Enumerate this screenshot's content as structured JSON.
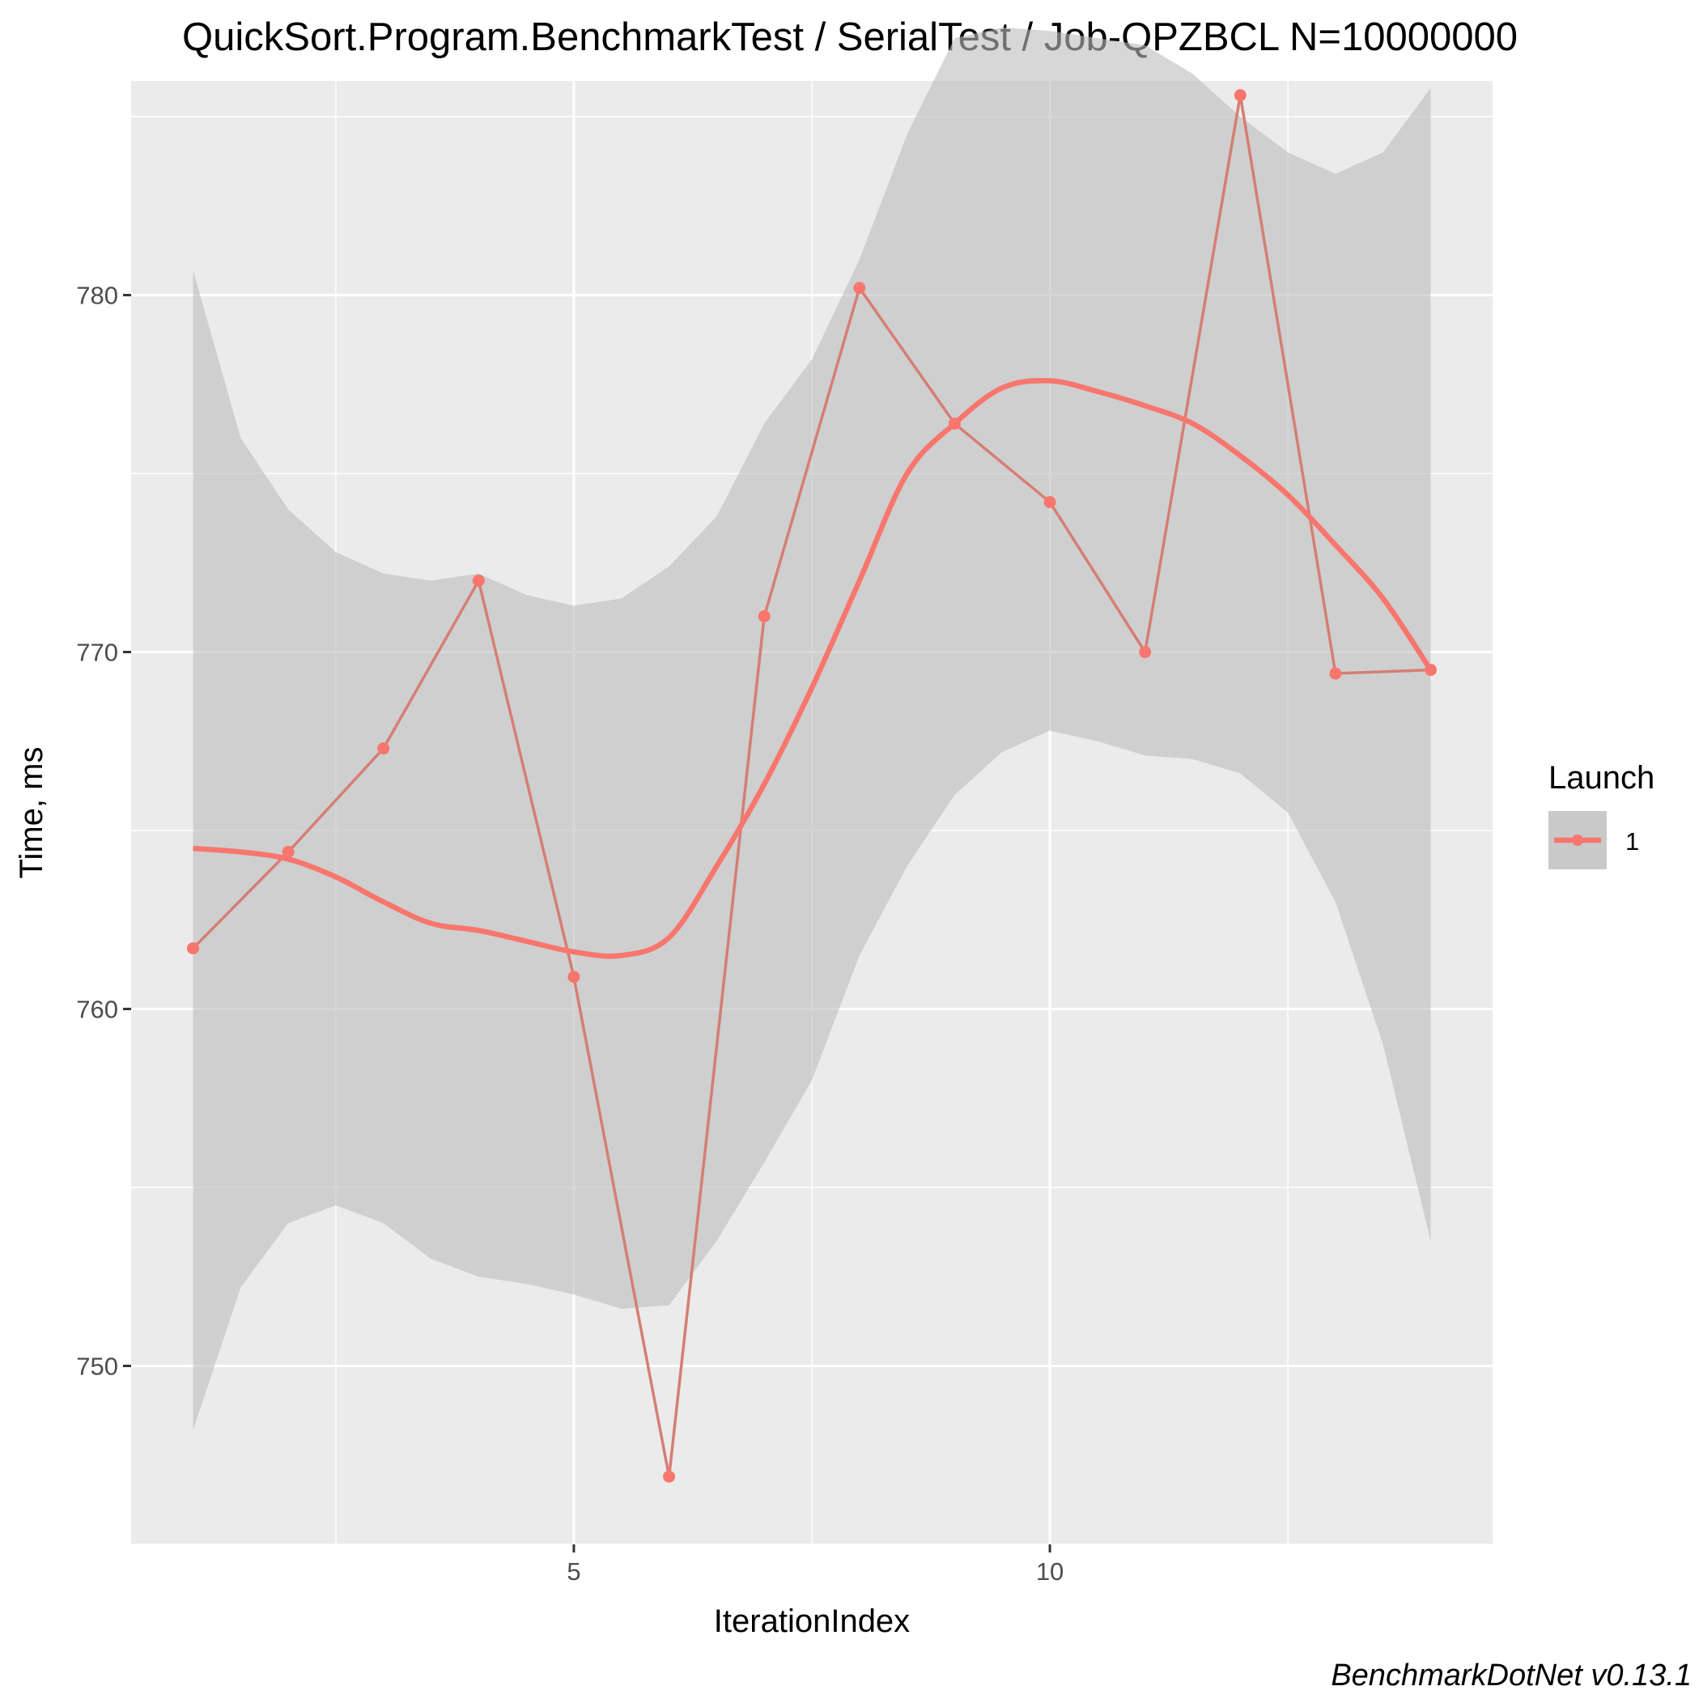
{
  "chart_data": {
    "type": "line",
    "title": "QuickSort.Program.BenchmarkTest / SerialTest / Job-QPZBCL N=10000000",
    "xlabel": "IterationIndex",
    "ylabel": "Time, ms",
    "caption": "BenchmarkDotNet v0.13.1",
    "xlim": [
      0.35,
      14.65
    ],
    "ylim": [
      745,
      786
    ],
    "x_ticks": [
      5,
      10
    ],
    "x_minor_ticks": [
      2.5,
      7.5,
      12.5
    ],
    "y_ticks": [
      750,
      760,
      770,
      780
    ],
    "y_minor_ticks": [
      745,
      755,
      765,
      775,
      785
    ],
    "grid": true,
    "legend": {
      "title": "Launch",
      "position": "right",
      "entries": [
        "1"
      ]
    },
    "colors": {
      "series": "#F8766D",
      "ribbon": "#cbcbcb",
      "panel": "#ebebeb",
      "grid": "#ffffff"
    },
    "series": [
      {
        "name": "1",
        "x": [
          1,
          2,
          3,
          4,
          5,
          6,
          7,
          8,
          9,
          10,
          11,
          12,
          13,
          14
        ],
        "values": [
          761.7,
          764.4,
          767.3,
          772.0,
          760.9,
          746.9,
          771.0,
          780.2,
          776.4,
          774.2,
          770.0,
          785.6,
          769.4,
          769.5
        ]
      }
    ],
    "smooth": {
      "x": [
        1,
        1.5,
        2,
        2.5,
        3,
        3.5,
        4,
        4.5,
        5,
        5.5,
        6,
        6.5,
        7,
        7.5,
        8,
        8.5,
        9,
        9.5,
        10,
        10.5,
        11,
        11.5,
        12,
        12.5,
        13,
        13.5,
        14
      ],
      "y": [
        764.5,
        764.4,
        764.2,
        763.7,
        763.0,
        762.4,
        762.2,
        761.9,
        761.6,
        761.5,
        762.0,
        764.0,
        766.3,
        769.0,
        772.0,
        775.0,
        776.4,
        777.4,
        777.6,
        777.3,
        776.9,
        776.4,
        775.5,
        774.4,
        773.0,
        771.5,
        769.5
      ],
      "lower": [
        748.2,
        752.2,
        754.0,
        754.5,
        754.0,
        753.0,
        752.5,
        752.3,
        752.0,
        751.6,
        751.7,
        753.5,
        755.7,
        758.0,
        761.5,
        764.0,
        766.0,
        767.2,
        767.8,
        767.5,
        767.1,
        767.0,
        766.6,
        765.5,
        763.0,
        759.0,
        753.5
      ],
      "upper": [
        780.7,
        776.0,
        774.0,
        772.8,
        772.2,
        772.0,
        772.2,
        771.6,
        771.3,
        771.5,
        772.4,
        773.8,
        776.4,
        778.2,
        781.0,
        784.5,
        787.2,
        787.5,
        787.4,
        787.2,
        787.0,
        786.2,
        785.0,
        784.0,
        783.4,
        784.0,
        785.8
      ]
    }
  }
}
